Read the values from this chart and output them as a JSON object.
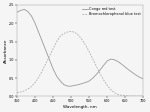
{
  "title": "",
  "xlabel": "Wavelength, nm",
  "ylabel": "Absorbance",
  "xlim": [
    350,
    700
  ],
  "ylim": [
    0.0,
    2.5
  ],
  "xticks": [
    350,
    400,
    450,
    500,
    550,
    600,
    650,
    700
  ],
  "yticks": [
    0.0,
    0.5,
    1.0,
    1.5,
    2.0,
    2.5
  ],
  "legend": [
    "Congo red test",
    "Bromochlorophenol blue test"
  ],
  "line_colors": [
    "#999999",
    "#aaaaaa"
  ],
  "line_styles": [
    "-",
    "--"
  ],
  "background_color": "#f5f5f5",
  "congo_red": {
    "x": [
      350,
      360,
      370,
      380,
      390,
      400,
      410,
      420,
      430,
      440,
      450,
      460,
      470,
      480,
      490,
      500,
      510,
      520,
      530,
      540,
      550,
      560,
      570,
      580,
      590,
      600,
      610,
      620,
      630,
      640,
      650,
      660,
      670,
      680,
      690,
      700
    ],
    "y": [
      2.3,
      2.35,
      2.38,
      2.32,
      2.2,
      2.0,
      1.75,
      1.5,
      1.25,
      1.0,
      0.75,
      0.55,
      0.42,
      0.32,
      0.28,
      0.28,
      0.3,
      0.32,
      0.35,
      0.38,
      0.42,
      0.5,
      0.6,
      0.72,
      0.85,
      0.97,
      1.02,
      1.0,
      0.95,
      0.88,
      0.8,
      0.72,
      0.65,
      0.58,
      0.52,
      0.48
    ]
  },
  "bromochloro": {
    "x": [
      350,
      360,
      370,
      380,
      390,
      400,
      410,
      420,
      430,
      440,
      450,
      460,
      470,
      480,
      490,
      500,
      510,
      520,
      530,
      540,
      550,
      560,
      570,
      580,
      590,
      600,
      610,
      620,
      630,
      640,
      650,
      660,
      670,
      680,
      690,
      700
    ],
    "y": [
      0.1,
      0.12,
      0.15,
      0.2,
      0.27,
      0.38,
      0.52,
      0.7,
      0.9,
      1.1,
      1.3,
      1.5,
      1.65,
      1.72,
      1.76,
      1.78,
      1.75,
      1.68,
      1.55,
      1.4,
      1.22,
      1.02,
      0.82,
      0.62,
      0.45,
      0.3,
      0.18,
      0.1,
      0.05,
      0.03,
      0.02,
      0.01,
      0.01,
      0.01,
      0.01,
      0.01
    ]
  }
}
